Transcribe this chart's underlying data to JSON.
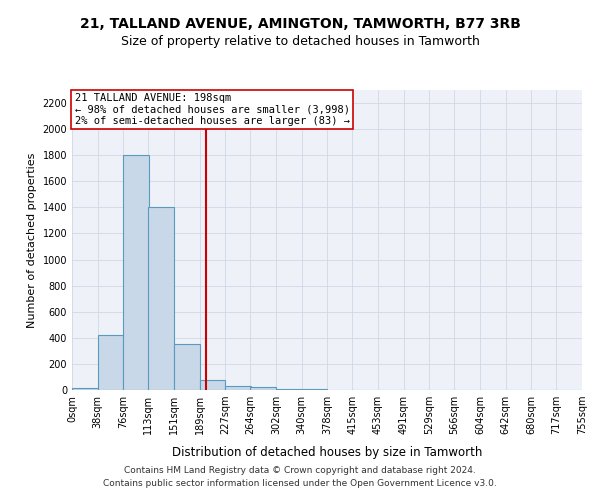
{
  "title1": "21, TALLAND AVENUE, AMINGTON, TAMWORTH, B77 3RB",
  "title2": "Size of property relative to detached houses in Tamworth",
  "xlabel": "Distribution of detached houses by size in Tamworth",
  "ylabel": "Number of detached properties",
  "bin_edges": [
    0,
    38,
    76,
    113,
    151,
    189,
    227,
    264,
    302,
    340,
    378,
    415,
    453,
    491,
    529,
    566,
    604,
    642,
    680,
    717,
    755
  ],
  "bar_heights": [
    15,
    420,
    1800,
    1400,
    350,
    80,
    30,
    20,
    10,
    5,
    2,
    1,
    0,
    0,
    0,
    0,
    0,
    0,
    0,
    0
  ],
  "bar_color": "#c8d8e8",
  "bar_edgecolor": "#5a9abf",
  "bar_linewidth": 0.8,
  "vline_x": 198,
  "vline_color": "#cc0000",
  "vline_linewidth": 1.5,
  "annotation_title": "21 TALLAND AVENUE: 198sqm",
  "annotation_line1": "← 98% of detached houses are smaller (3,998)",
  "annotation_line2": "2% of semi-detached houses are larger (83) →",
  "annotation_box_edgecolor": "#cc0000",
  "annotation_box_facecolor": "white",
  "ylim": [
    0,
    2300
  ],
  "yticks": [
    0,
    200,
    400,
    600,
    800,
    1000,
    1200,
    1400,
    1600,
    1800,
    2000,
    2200
  ],
  "xtick_labels": [
    "0sqm",
    "38sqm",
    "76sqm",
    "113sqm",
    "151sqm",
    "189sqm",
    "227sqm",
    "264sqm",
    "302sqm",
    "340sqm",
    "378sqm",
    "415sqm",
    "453sqm",
    "491sqm",
    "529sqm",
    "566sqm",
    "604sqm",
    "642sqm",
    "680sqm",
    "717sqm",
    "755sqm"
  ],
  "grid_color": "#d0d8e8",
  "bg_color": "#eef2f8",
  "footer1": "Contains HM Land Registry data © Crown copyright and database right 2024.",
  "footer2": "Contains public sector information licensed under the Open Government Licence v3.0.",
  "title1_fontsize": 10,
  "title2_fontsize": 9,
  "xlabel_fontsize": 8.5,
  "ylabel_fontsize": 8,
  "tick_fontsize": 7,
  "annotation_fontsize": 7.5,
  "footer_fontsize": 6.5
}
